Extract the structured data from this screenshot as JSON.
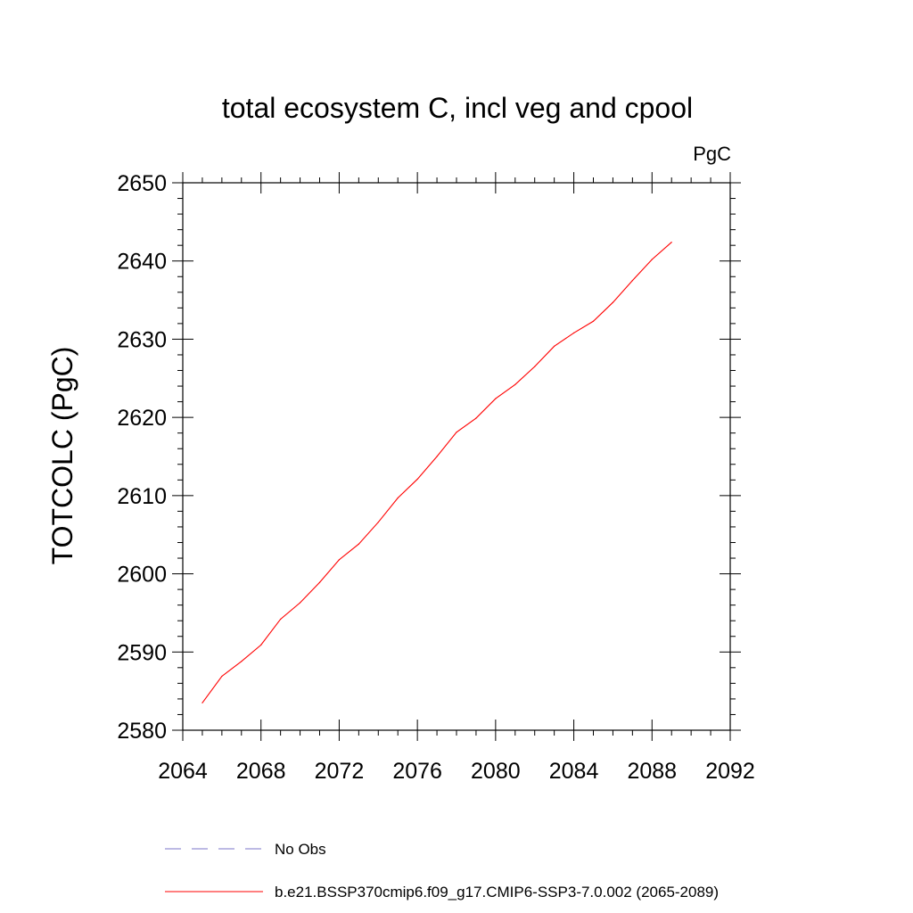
{
  "chart_data": {
    "type": "line",
    "title": "total ecosystem C, incl veg and cpool",
    "units_label": "PgC",
    "xlabel": "",
    "ylabel": "TOTCOLC  (PgC)",
    "xlim": [
      2064,
      2092
    ],
    "ylim": [
      2580,
      2650
    ],
    "x_ticks": [
      2064,
      2068,
      2072,
      2076,
      2080,
      2084,
      2088,
      2092
    ],
    "x_tick_labels": [
      "2064",
      "2068",
      "2072",
      "2076",
      "2080",
      "2084",
      "2088",
      "2092"
    ],
    "y_ticks": [
      2580,
      2590,
      2600,
      2610,
      2620,
      2630,
      2640,
      2650
    ],
    "y_tick_labels": [
      "2580",
      "2590",
      "2600",
      "2610",
      "2620",
      "2630",
      "2640",
      "2650"
    ],
    "grid": false,
    "legend_position": "bottom",
    "series": [
      {
        "name": "No Obs",
        "color": "#7b76c8",
        "style": "dashed",
        "x": [],
        "y": []
      },
      {
        "name": "b.e21.BSSP370cmip6.f09_g17.CMIP6-SSP3-7.0.002 (2065-2089)",
        "color": "#ff0000",
        "style": "solid",
        "x": [
          2065,
          2066,
          2067,
          2068,
          2069,
          2070,
          2071,
          2072,
          2073,
          2074,
          2075,
          2076,
          2077,
          2078,
          2079,
          2080,
          2081,
          2082,
          2083,
          2084,
          2085,
          2086,
          2087,
          2088,
          2089
        ],
        "y": [
          2583.5,
          2586.9,
          2588.8,
          2590.9,
          2594.2,
          2596.3,
          2598.9,
          2601.8,
          2603.8,
          2606.6,
          2609.7,
          2612.1,
          2615.0,
          2618.1,
          2619.9,
          2622.4,
          2624.2,
          2626.5,
          2629.1,
          2630.8,
          2632.3,
          2634.7,
          2637.5,
          2640.2,
          2642.4
        ]
      }
    ]
  }
}
